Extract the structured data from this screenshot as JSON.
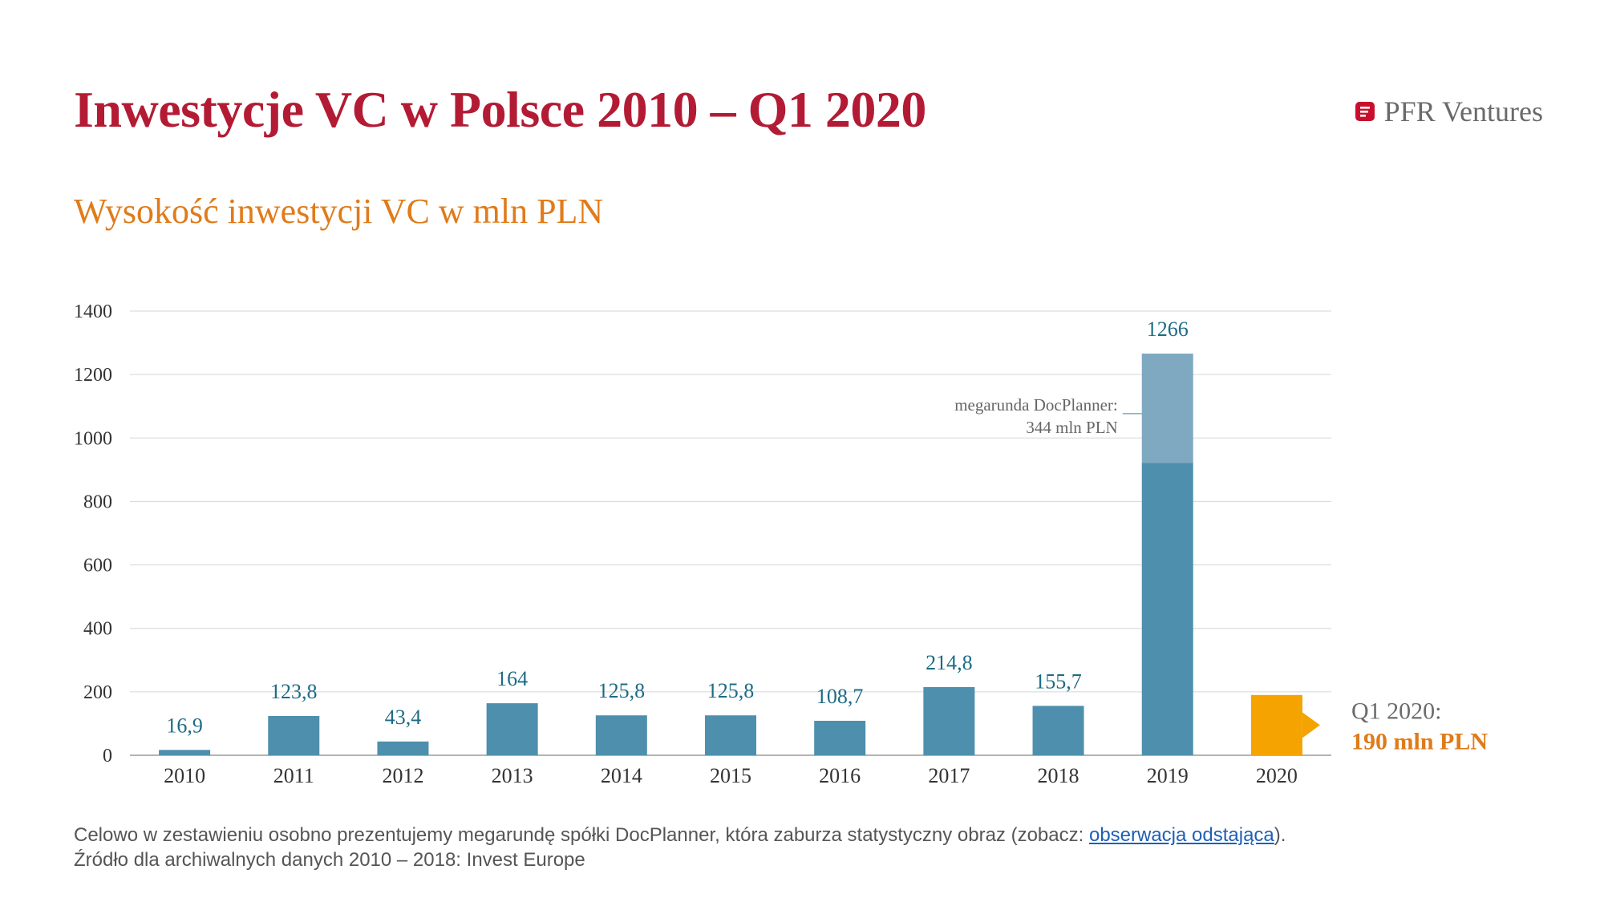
{
  "header": {
    "title": "Inwestycje VC w Polsce 2010 – Q1 2020",
    "brand": "PFR Ventures"
  },
  "colors": {
    "title": "#b31b34",
    "subtitle": "#e07b1a",
    "bar": "#4e8fad",
    "bar_megaround": "#7ea9c1",
    "bar_highlight": "#f5a300",
    "label": "#1d6b85"
  },
  "chart_data": {
    "type": "bar",
    "title": "Wysokość inwestycji VC w mln PLN",
    "categories": [
      "2010",
      "2011",
      "2012",
      "2013",
      "2014",
      "2015",
      "2016",
      "2017",
      "2018",
      "2019",
      "2020"
    ],
    "values": [
      16.9,
      123.8,
      43.4,
      164,
      125.8,
      125.8,
      108.7,
      214.8,
      155.7,
      1266,
      190
    ],
    "value_labels": [
      "16,9",
      "123,8",
      "43,4",
      "164",
      "125,8",
      "125,8",
      "108,7",
      "214,8",
      "155,7",
      "1266",
      ""
    ],
    "megaround": {
      "year": "2019",
      "value": 344,
      "label_line1": "megarunda DocPlanner:",
      "label_line2": "344 mln PLN"
    },
    "highlight": {
      "year": "2020",
      "label_line1": "Q1 2020:",
      "label_line2": "190 mln PLN"
    },
    "yticks": [
      0,
      200,
      400,
      600,
      800,
      1000,
      1200,
      1400
    ],
    "ytick_labels": [
      "0",
      "200",
      "400",
      "600",
      "800",
      "1000",
      "1200",
      "1400"
    ],
    "ylim": [
      0,
      1400
    ],
    "grid": true,
    "legend": "none"
  },
  "footnote": {
    "line1_prefix": "Celowo w zestawieniu osobno prezentujemy megarundę spółki DocPlanner, która zaburza statystyczny obraz (zobacz: ",
    "line1_link": "obserwacja odstająca",
    "line1_suffix": ").",
    "line2": "Źródło dla archiwalnych danych 2010 – 2018: Invest Europe"
  }
}
